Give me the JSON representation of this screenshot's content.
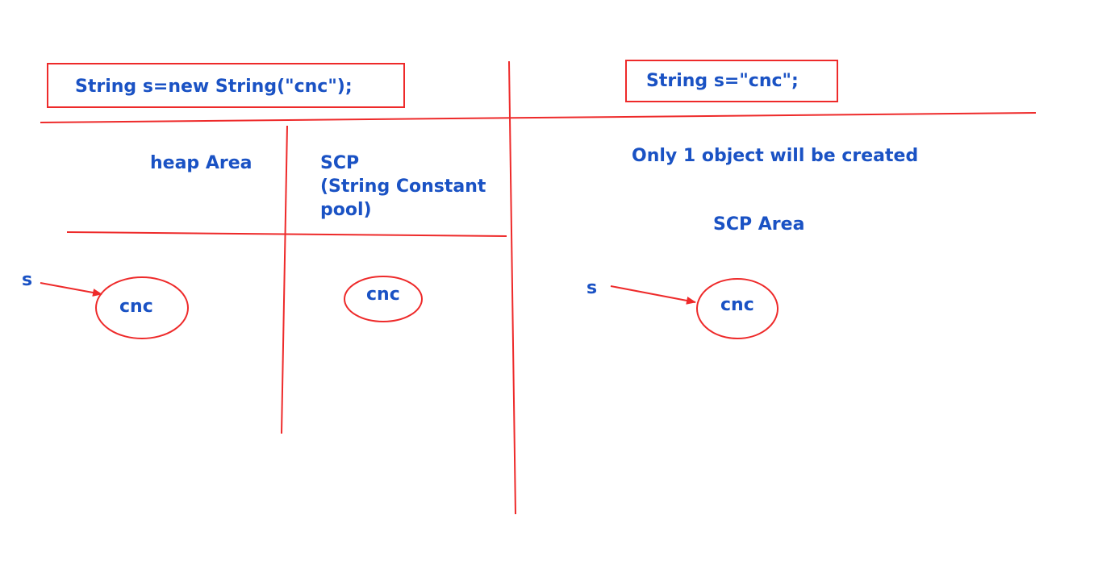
{
  "colors": {
    "text": "#1a52c4",
    "lines": "#ee2a2a"
  },
  "left": {
    "code": "String s=new String(\"cnc\");",
    "heap_label": "heap Area",
    "scp_label_line1": "SCP",
    "scp_label_line2": "(String Constant",
    "scp_label_line3": "pool)",
    "ref_var": "s",
    "heap_object": "cnc",
    "scp_object": "cnc"
  },
  "right": {
    "code": "String s=\"cnc\";",
    "note": "Only 1 object will be created",
    "scp_label": "SCP Area",
    "ref_var": "s",
    "scp_object": "cnc"
  }
}
